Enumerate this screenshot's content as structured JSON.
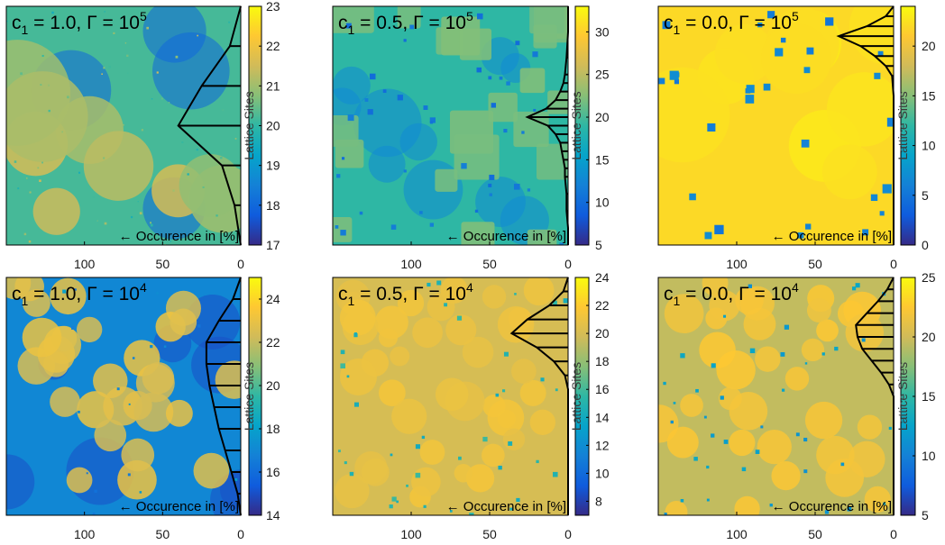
{
  "colors": {
    "parula": [
      "#352a87",
      "#0f5cdd",
      "#1481d6",
      "#06a4ca",
      "#2eb7a4",
      "#87bf77",
      "#d1bb59",
      "#fec832",
      "#f9fb0e"
    ],
    "histogram_line": "#000000",
    "axis": "#000000"
  },
  "chart_data": [
    {
      "type": "heatmap",
      "id": "p1",
      "title_c1": "1.0",
      "title_gamma_exp": "5",
      "occurrence_label": "← Occurence in [%]",
      "x_ticks": [
        "100",
        "50",
        "0"
      ],
      "colorbar": {
        "label": "Lattice Sites",
        "min": 17,
        "max": 23,
        "ticks": [
          17,
          18,
          19,
          20,
          21,
          22,
          23
        ]
      },
      "histogram": {
        "y": [
          23,
          22,
          21,
          20,
          19,
          18,
          17
        ],
        "occurrence_pct": [
          0,
          7,
          25,
          40,
          12,
          4,
          0
        ]
      }
    },
    {
      "type": "heatmap",
      "id": "p2",
      "title_c1": "0.5",
      "title_gamma_exp": "5",
      "occurrence_label": "← Occurence in [%]",
      "x_ticks": [
        "100",
        "50",
        "0"
      ],
      "colorbar": {
        "label": "Lattice Sites",
        "min": 5,
        "max": 33,
        "ticks": [
          5,
          10,
          15,
          20,
          25,
          30
        ]
      },
      "histogram": {
        "y": [
          33,
          30,
          27,
          25,
          24,
          23,
          22,
          21,
          20,
          19,
          18,
          17,
          16,
          15,
          14,
          13,
          11,
          9,
          7,
          5
        ],
        "occurrence_pct": [
          0,
          0,
          1,
          2,
          3,
          5,
          8,
          14,
          26,
          13,
          8,
          5,
          4,
          3,
          2,
          2,
          1,
          1,
          0,
          0
        ]
      }
    },
    {
      "type": "heatmap",
      "id": "p3",
      "title_c1": "0.0",
      "title_gamma_exp": "5",
      "occurrence_label": "← Occurence in [%]",
      "x_ticks": [
        "100",
        "50",
        "0"
      ],
      "colorbar": {
        "label": "Lattice Sites",
        "min": 0,
        "max": 24,
        "ticks": [
          0,
          5,
          10,
          15,
          20
        ]
      },
      "histogram": {
        "y": [
          24,
          23,
          22,
          21,
          20,
          19,
          18,
          17,
          15,
          10,
          5,
          0
        ],
        "occurrence_pct": [
          0,
          5,
          17,
          35,
          21,
          12,
          5,
          1,
          0,
          0,
          0,
          0
        ]
      }
    },
    {
      "type": "heatmap",
      "id": "p4",
      "title_c1": "1.0",
      "title_gamma_exp": "4",
      "occurrence_label": "← Occurence in [%]",
      "x_ticks": [
        "100",
        "50",
        "0"
      ],
      "colorbar": {
        "label": "Lattice Sites",
        "min": 14,
        "max": 25,
        "ticks": [
          14,
          16,
          18,
          20,
          22,
          24
        ]
      },
      "histogram": {
        "y": [
          25,
          24,
          23,
          22,
          21,
          20,
          19,
          18,
          17,
          16,
          15,
          14
        ],
        "occurrence_pct": [
          0,
          5,
          14,
          22,
          22,
          20,
          17,
          14,
          10,
          6,
          2,
          0
        ]
      }
    },
    {
      "type": "heatmap",
      "id": "p5",
      "title_c1": "0.5",
      "title_gamma_exp": "4",
      "occurrence_label": "← Occurence in [%]",
      "x_ticks": [
        "100",
        "50",
        "0"
      ],
      "colorbar": {
        "label": "Lattice Sites",
        "min": 7,
        "max": 24,
        "ticks": [
          8,
          10,
          12,
          14,
          16,
          18,
          20,
          22,
          24
        ]
      },
      "histogram": {
        "y": [
          24,
          23,
          22,
          21,
          20,
          19,
          18,
          17,
          16,
          12,
          7
        ],
        "occurrence_pct": [
          0,
          3,
          12,
          26,
          36,
          20,
          9,
          2,
          0,
          0,
          0
        ]
      }
    },
    {
      "type": "heatmap",
      "id": "p6",
      "title_c1": "0.0",
      "title_gamma_exp": "4",
      "occurrence_label": "← Occurence in [%]",
      "x_ticks": [
        "100",
        "50",
        "0"
      ],
      "colorbar": {
        "label": "Lattice Sites",
        "min": 5,
        "max": 25,
        "ticks": [
          5,
          10,
          15,
          20,
          25
        ]
      },
      "histogram": {
        "y": [
          25,
          24,
          23,
          22,
          21,
          20,
          19,
          18,
          17,
          16,
          15,
          10,
          5
        ],
        "occurrence_pct": [
          0,
          4,
          10,
          17,
          24,
          23,
          20,
          14,
          8,
          3,
          0,
          0,
          0
        ]
      }
    }
  ]
}
